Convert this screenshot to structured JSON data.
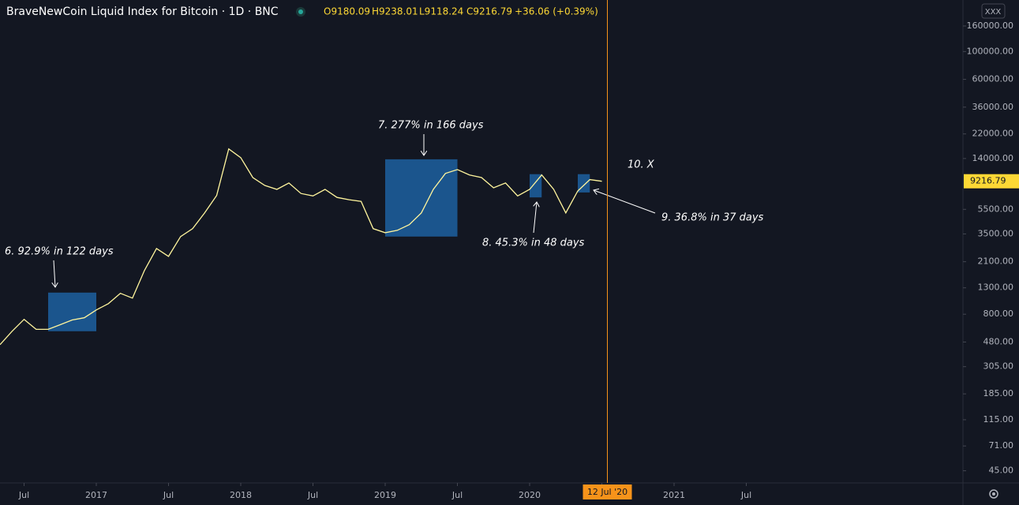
{
  "chart_data": {
    "type": "line",
    "log_scale": true,
    "title": "BraveNewCoin Liquid Index for Bitcoin · 1D · BNC",
    "ohlc_labels": [
      "O9180.09",
      "H9238.01",
      "L9118.24",
      "C9216.79",
      "+36.06 (+0.39%)"
    ],
    "button_label": "XXX",
    "crosshair_label": "12 Jul '20",
    "last_value": 9216.79,
    "color": "#fff59d",
    "x": [
      "2016-05",
      "2016-06",
      "2016-07",
      "2016-08",
      "2016-09",
      "2016-10",
      "2016-11",
      "2016-12",
      "2017-01",
      "2017-02",
      "2017-03",
      "2017-04",
      "2017-05",
      "2017-06",
      "2017-07",
      "2017-08",
      "2017-09",
      "2017-10",
      "2017-11",
      "2017-12",
      "2018-01",
      "2018-02",
      "2018-03",
      "2018-04",
      "2018-05",
      "2018-06",
      "2018-07",
      "2018-08",
      "2018-09",
      "2018-10",
      "2018-11",
      "2018-12",
      "2019-01",
      "2019-02",
      "2019-03",
      "2019-04",
      "2019-05",
      "2019-06",
      "2019-07",
      "2019-08",
      "2019-09",
      "2019-10",
      "2019-11",
      "2019-12",
      "2020-01",
      "2020-02",
      "2020-03",
      "2020-04",
      "2020-05",
      "2020-06",
      "2020-07"
    ],
    "values": [
      457,
      585,
      728,
      606,
      606,
      660,
      720,
      750,
      865,
      972,
      1175,
      1075,
      1786,
      2680,
      2316,
      3334,
      3855,
      5155,
      7100,
      16700,
      14230,
      9870,
      8540,
      7940,
      8930,
      7360,
      7040,
      7940,
      6850,
      6560,
      6370,
      3855,
      3580,
      3740,
      4150,
      5155,
      7940,
      10640,
      11430,
      10350,
      9870,
      8170,
      8930,
      7040,
      7940,
      10350,
      7940,
      5155,
      7710,
      9500,
      9216.79
    ],
    "boxes": [
      {
        "x": [
          "2016-09",
          "2017-01"
        ],
        "y": [
          585,
          1190
        ]
      },
      {
        "x": [
          "2019-01",
          "2019-07"
        ],
        "y": [
          3334,
          13800
        ]
      },
      {
        "x": [
          "2020-01",
          "2020-02"
        ],
        "y": [
          6850,
          10500
        ]
      },
      {
        "x": [
          "2020-05",
          "2020-06"
        ],
        "y": [
          7500,
          10500
        ]
      }
    ],
    "annotations": [
      "6. 92.9% in 122 days",
      "7. 277% in 166 days",
      "8. 45.3% in 48 days",
      "9. 36.8% in 37 days",
      "10. X"
    ],
    "xlim": [
      "2016-05",
      "2023-01"
    ],
    "xticks": [
      {
        "value": "2016-07",
        "label": "Jul"
      },
      {
        "value": "2017-01",
        "label": "2017"
      },
      {
        "value": "2017-07",
        "label": "Jul"
      },
      {
        "value": "2018-01",
        "label": "2018"
      },
      {
        "value": "2018-07",
        "label": "Jul"
      },
      {
        "value": "2019-01",
        "label": "2019"
      },
      {
        "value": "2019-07",
        "label": "Jul"
      },
      {
        "value": "2020-01",
        "label": "2020"
      },
      {
        "value": "2020-07",
        "label": "Jul"
      },
      {
        "value": "2021-01",
        "label": "2021"
      },
      {
        "value": "2021-07",
        "label": "Jul"
      }
    ],
    "ylim": [
      36,
      258000
    ],
    "yticks": [
      {
        "value": 160000,
        "label": "160000.00"
      },
      {
        "value": 100000,
        "label": "100000.00"
      },
      {
        "value": 60000,
        "label": "60000.00"
      },
      {
        "value": 36000,
        "label": "36000.00"
      },
      {
        "value": 22000,
        "label": "22000.00"
      },
      {
        "value": 14000,
        "label": "14000.00"
      },
      {
        "value": 5500,
        "label": "5500.00"
      },
      {
        "value": 3500,
        "label": "3500.00"
      },
      {
        "value": 2100,
        "label": "2100.00"
      },
      {
        "value": 1300,
        "label": "1300.00"
      },
      {
        "value": 800,
        "label": "800.00"
      },
      {
        "value": 480,
        "label": "480.00"
      },
      {
        "value": 305,
        "label": "305.00"
      },
      {
        "value": 185,
        "label": "185.00"
      },
      {
        "value": 115,
        "label": "115.00"
      },
      {
        "value": 71,
        "label": "71.00"
      },
      {
        "value": 45,
        "label": "45.00"
      }
    ]
  }
}
